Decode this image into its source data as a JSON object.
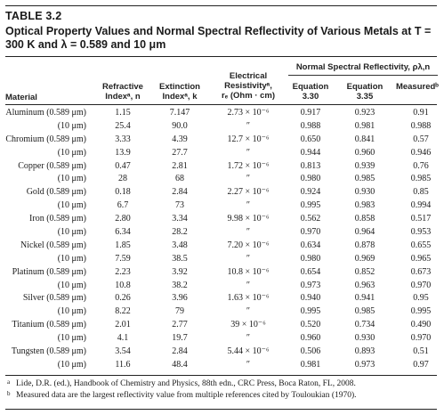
{
  "table": {
    "number": "TABLE 3.2",
    "caption": "Optical Property Values and Normal Spectral Reflectivity of Various Metals at T = 300 K and λ = 0.589 and 10 μm"
  },
  "headers": {
    "material": "Material",
    "refractive": [
      "Refractive",
      "Indexᵃ, n"
    ],
    "extinction": [
      "Extinction",
      "Indexᵃ, k"
    ],
    "resistivity": [
      "Electrical",
      "Resistivityᵃ,",
      "rₑ (Ohm · cm)"
    ],
    "reflectivity_group": "Normal Spectral Reflectivity, ρλ,n",
    "eq330": [
      "Equation",
      "3.30"
    ],
    "eq335": [
      "Equation",
      "3.35"
    ],
    "measured": "Measuredᵇ"
  },
  "rows": [
    {
      "material": "Aluminum (0.589 μm)",
      "n": "1.15",
      "k": "7.147",
      "resistivity": "2.73 × 10⁻⁶",
      "eq330": "0.917",
      "eq335": "0.923",
      "measured": "0.91"
    },
    {
      "material": "(10 μm)",
      "n": "25.4",
      "k": "90.0",
      "resistivity": "″",
      "eq330": "0.988",
      "eq335": "0.981",
      "measured": "0.988"
    },
    {
      "material": "Chromium (0.589 μm)",
      "n": "3.33",
      "k": "4.39",
      "resistivity": "12.7 × 10⁻⁶",
      "eq330": "0.650",
      "eq335": "0.841",
      "measured": "0.57"
    },
    {
      "material": "(10 μm)",
      "n": "13.9",
      "k": "27.7",
      "resistivity": "″",
      "eq330": "0.944",
      "eq335": "0.960",
      "measured": "0.946"
    },
    {
      "material": "Copper (0.589 μm)",
      "n": "0.47",
      "k": "2.81",
      "resistivity": "1.72 × 10⁻⁶",
      "eq330": "0.813",
      "eq335": "0.939",
      "measured": "0.76"
    },
    {
      "material": "(10 μm)",
      "n": "28",
      "k": "68",
      "resistivity": "″",
      "eq330": "0.980",
      "eq335": "0.985",
      "measured": "0.985"
    },
    {
      "material": "Gold (0.589 μm)",
      "n": "0.18",
      "k": "2.84",
      "resistivity": "2.27 × 10⁻⁶",
      "eq330": "0.924",
      "eq335": "0.930",
      "measured": "0.85"
    },
    {
      "material": "(10 μm)",
      "n": "6.7",
      "k": "73",
      "resistivity": "″",
      "eq330": "0.995",
      "eq335": "0.983",
      "measured": "0.994"
    },
    {
      "material": "Iron (0.589 μm)",
      "n": "2.80",
      "k": "3.34",
      "resistivity": "9.98 × 10⁻⁶",
      "eq330": "0.562",
      "eq335": "0.858",
      "measured": "0.517"
    },
    {
      "material": "(10 μm)",
      "n": "6.34",
      "k": "28.2",
      "resistivity": "″",
      "eq330": "0.970",
      "eq335": "0.964",
      "measured": "0.953"
    },
    {
      "material": "Nickel (0.589 μm)",
      "n": "1.85",
      "k": "3.48",
      "resistivity": "7.20 × 10⁻⁶",
      "eq330": "0.634",
      "eq335": "0.878",
      "measured": "0.655"
    },
    {
      "material": "(10 μm)",
      "n": "7.59",
      "k": "38.5",
      "resistivity": "″",
      "eq330": "0.980",
      "eq335": "0.969",
      "measured": "0.965"
    },
    {
      "material": "Platinum (0.589 μm)",
      "n": "2.23",
      "k": "3.92",
      "resistivity": "10.8 × 10⁻⁶",
      "eq330": "0.654",
      "eq335": "0.852",
      "measured": "0.673"
    },
    {
      "material": "(10 μm)",
      "n": "10.8",
      "k": "38.2",
      "resistivity": "″",
      "eq330": "0.973",
      "eq335": "0.963",
      "measured": "0.970"
    },
    {
      "material": "Silver (0.589 μm)",
      "n": "0.26",
      "k": "3.96",
      "resistivity": "1.63 × 10⁻⁶",
      "eq330": "0.940",
      "eq335": "0.941",
      "measured": "0.95"
    },
    {
      "material": "(10 μm)",
      "n": "8.22",
      "k": "79",
      "resistivity": "″",
      "eq330": "0.995",
      "eq335": "0.985",
      "measured": "0.995"
    },
    {
      "material": "Titanium (0.589 μm)",
      "n": "2.01",
      "k": "2.77",
      "resistivity": "39 × 10⁻⁶",
      "eq330": "0.520",
      "eq335": "0.734",
      "measured": "0.490"
    },
    {
      "material": "(10 μm)",
      "n": "4.1",
      "k": "19.7",
      "resistivity": "″",
      "eq330": "0.960",
      "eq335": "0.930",
      "measured": "0.970"
    },
    {
      "material": "Tungsten (0.589 μm)",
      "n": "3.54",
      "k": "2.84",
      "resistivity": "5.44 × 10⁻⁶",
      "eq330": "0.506",
      "eq335": "0.893",
      "measured": "0.51"
    },
    {
      "material": "(10 μm)",
      "n": "11.6",
      "k": "48.4",
      "resistivity": "″",
      "eq330": "0.981",
      "eq335": "0.973",
      "measured": "0.97"
    }
  ],
  "footnotes": [
    {
      "mark": "a",
      "text": "Lide, D.R. (ed.), Handbook of Chemistry and Physics, 88th edn., CRC Press, Boca Raton, FL, 2008."
    },
    {
      "mark": "b",
      "text": "Measured data are the largest reflectivity value from multiple references cited by Touloukian (1970)."
    }
  ]
}
